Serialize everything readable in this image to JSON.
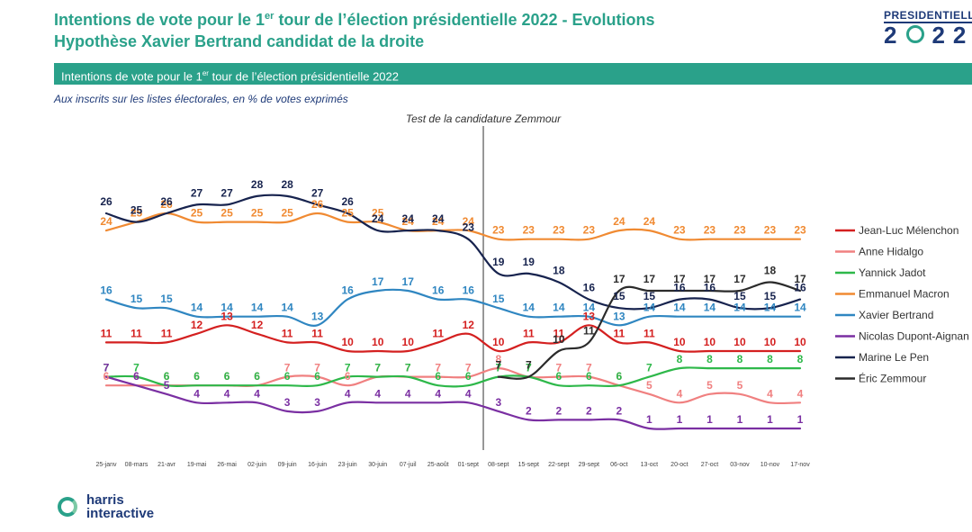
{
  "header": {
    "title_prefix": "Intentions de vote pour le 1",
    "title_sup": "er",
    "title_suffix": " tour de l’élection présidentielle 2022 - Evolutions",
    "title_line2": "Hypothèse Xavier Bertrand candidat de la droite",
    "logo_top": "PRESIDENTIELLE",
    "logo_year_left": "2",
    "logo_year_right": "22"
  },
  "band": {
    "prefix": "Intentions de vote pour le 1",
    "sup": "er",
    "suffix": " tour de l’élection présidentielle 2022"
  },
  "subtitle": "Aux inscrits sur les listes électorales, en % de votes exprimés",
  "footer": {
    "logo_line1": "harris",
    "logo_line2": "interactive"
  },
  "chart_data": {
    "type": "line",
    "title": "",
    "xlabel": "",
    "ylabel": "",
    "grid": false,
    "legend_position": "right",
    "annotation": {
      "label": "Test de la candidature Zemmour",
      "between": [
        "01-sept",
        "08-sept"
      ]
    },
    "x": [
      "25-janv",
      "08-mars",
      "21-avr",
      "19-mai",
      "26-mai",
      "02-juin",
      "09-juin",
      "16-juin",
      "23-juin",
      "30-juin",
      "07-juil",
      "25-août",
      "01-sept",
      "08-sept",
      "15-sept",
      "22-sept",
      "29-sept",
      "06-oct",
      "13-oct",
      "20-oct",
      "27-oct",
      "03-nov",
      "10-nov",
      "17-nov"
    ],
    "series": [
      {
        "name": "Jean-Luc Mélenchon",
        "color": "#d42020",
        "values": [
          11,
          11,
          11,
          12,
          13,
          12,
          11,
          11,
          10,
          10,
          10,
          11,
          12,
          10,
          11,
          11,
          13,
          11,
          11,
          10,
          10,
          10,
          10,
          10
        ]
      },
      {
        "name": "Anne Hidalgo",
        "color": "#f08080",
        "values": [
          6,
          6,
          6,
          6,
          6,
          6,
          7,
          7,
          6,
          7,
          7,
          7,
          7,
          8,
          7,
          7,
          7,
          6,
          5,
          4,
          5,
          5,
          4,
          4
        ]
      },
      {
        "name": "Yannick Jadot",
        "color": "#2eb84a",
        "values": [
          7,
          7,
          6,
          6,
          6,
          6,
          6,
          6,
          7,
          7,
          7,
          6,
          6,
          7,
          7,
          6,
          6,
          6,
          7,
          8,
          8,
          8,
          8,
          8
        ]
      },
      {
        "name": "Emmanuel Macron",
        "color": "#f08a32",
        "values": [
          24,
          25,
          26,
          25,
          25,
          25,
          25,
          26,
          25,
          25,
          24,
          24,
          24,
          23,
          23,
          23,
          23,
          24,
          24,
          23,
          23,
          23,
          23,
          23
        ]
      },
      {
        "name": "Xavier Bertrand",
        "color": "#2f86c1",
        "values": [
          16,
          15,
          15,
          14,
          14,
          14,
          14,
          13,
          16,
          17,
          17,
          16,
          16,
          15,
          14,
          14,
          14,
          13,
          14,
          14,
          14,
          14,
          14,
          14
        ]
      },
      {
        "name": "Nicolas Dupont-Aignan",
        "color": "#7a2fa2",
        "values": [
          7,
          6,
          5,
          4,
          4,
          4,
          3,
          3,
          4,
          4,
          4,
          4,
          4,
          3,
          2,
          2,
          2,
          2,
          1,
          1,
          1,
          1,
          1,
          1
        ]
      },
      {
        "name": "Marine Le Pen",
        "color": "#17234e",
        "values": [
          26,
          25,
          26,
          27,
          27,
          28,
          28,
          27,
          26,
          24,
          24,
          24,
          23,
          19,
          19,
          18,
          16,
          15,
          15,
          16,
          16,
          15,
          15,
          16
        ]
      },
      {
        "name": "Éric Zemmour",
        "color": "#2b2b2b",
        "start_index": 13,
        "values": [
          null,
          null,
          null,
          null,
          null,
          null,
          null,
          null,
          null,
          null,
          null,
          null,
          null,
          7,
          7,
          10,
          11,
          17,
          17,
          17,
          17,
          17,
          18,
          17
        ]
      }
    ]
  }
}
